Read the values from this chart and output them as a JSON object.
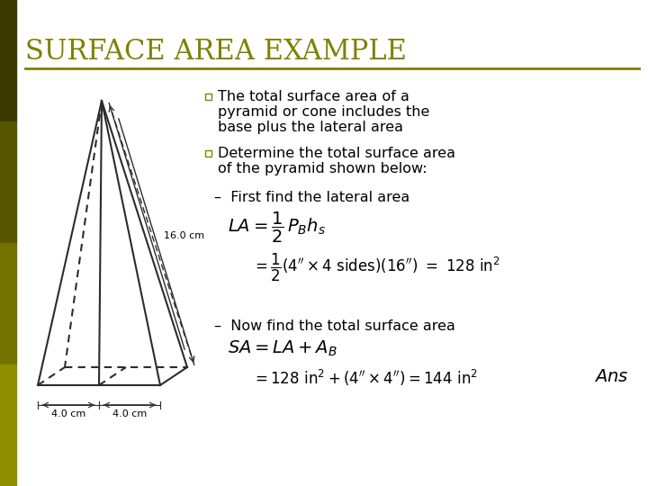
{
  "title": "SURFACE AREA EXAMPLE",
  "title_color": "#808000",
  "title_fontsize": 22,
  "bg_color": "#ffffff",
  "bullet_color": "#808000",
  "text_color": "#000000",
  "pyramid_color": "#2c2c2c",
  "bullet1_line1": "The total surface area of a",
  "bullet1_line2": "pyramid or cone includes the",
  "bullet1_line3": "base plus the lateral area",
  "bullet2_line1": "Determine the total surface area",
  "bullet2_line2": "of the pyramid shown below:",
  "sub1": "–  First find the lateral area",
  "sub2": "–  Now find the total surface area",
  "dim_slant": "16.0 cm",
  "dim_base1": "4.0 cm",
  "dim_base2": "4.0 cm"
}
